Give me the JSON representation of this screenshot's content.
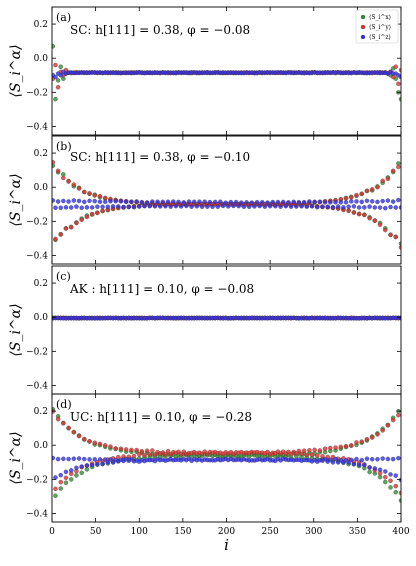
{
  "chart_data": {
    "type": "scatter",
    "layout": "4 vertically stacked panels sharing x axis",
    "xlabel": "i",
    "ylabel": "⟨S_i^α⟩",
    "xlim": [
      0,
      400
    ],
    "ylim": [
      -0.45,
      0.3
    ],
    "x_ticks": [
      0,
      50,
      100,
      150,
      200,
      250,
      300,
      350,
      400
    ],
    "y_ticks": [
      0.2,
      0.0,
      -0.2,
      -0.4
    ],
    "x_tick_labels": [
      "0",
      "50",
      "100",
      "150",
      "200",
      "250",
      "300",
      "350",
      "400"
    ],
    "y_tick_labels": [
      "0.2",
      "0.0",
      "−0.2",
      "−0.4"
    ],
    "grid": false,
    "legend": {
      "placement": "top-right",
      "panel": 0,
      "entries": [
        {
          "label": "⟨S_i^x⟩",
          "color": "#2f8f2f"
        },
        {
          "label": "⟨S_i^y⟩",
          "color": "#e03030"
        },
        {
          "label": "⟨S_i^z⟩",
          "color": "#3030e8"
        }
      ]
    },
    "colors": {
      "x": "#2f8f2f",
      "y": "#e03030",
      "z": "#3030e8"
    },
    "n_sites": 400,
    "panels": [
      {
        "letter": "(a)",
        "label": "SC: h[111] = 0.38,  φ = −0.08",
        "bulk": {
          "x": -0.085,
          "y": -0.085,
          "z": -0.085
        },
        "edge_left": {
          "x": [
            0.07,
            -0.24,
            -0.13,
            -0.05,
            -0.12,
            -0.09
          ],
          "y": [
            -0.12,
            -0.04,
            -0.17,
            -0.08,
            -0.1,
            -0.07
          ],
          "z": [
            -0.1,
            -0.11,
            -0.09,
            -0.1,
            -0.08,
            -0.09
          ]
        },
        "edge_right": {
          "x": [
            -0.24,
            -0.2,
            -0.12,
            -0.06,
            -0.1,
            -0.09
          ],
          "y": [
            -0.07,
            -0.15,
            -0.05,
            -0.11,
            -0.08,
            -0.09
          ],
          "z": [
            -0.11,
            -0.1,
            -0.09,
            -0.09,
            -0.08,
            -0.09
          ]
        }
      },
      {
        "letter": "(b)",
        "label": "SC: h[111] = 0.38,  φ = −0.10",
        "bulk": {
          "x": -0.1,
          "y": -0.1,
          "z": -0.1
        },
        "envelope": {
          "x": 0.27,
          "y": 0.27,
          "z": 0.03
        },
        "decay_sites": 95
      },
      {
        "letter": "(c)",
        "label": "AK : h[111] = 0.10,  φ = −0.08",
        "bulk": {
          "x": -0.005,
          "y": -0.005,
          "z": -0.005
        }
      },
      {
        "letter": "(d)",
        "label": "UC: h[111] = 0.10,  φ = −0.28",
        "profile": {
          "x": {
            "bulk": -0.06,
            "branch_upper_edge": 0.22,
            "branch_lower_edge": -0.32
          },
          "y": {
            "bulk": -0.045,
            "branch_upper_edge": 0.2,
            "branch_lower_edge": -0.28
          },
          "z": {
            "bulk": -0.085,
            "branch_upper_edge": -0.08,
            "branch_lower_edge": -0.2
          }
        },
        "decay_sites": 80
      }
    ]
  }
}
